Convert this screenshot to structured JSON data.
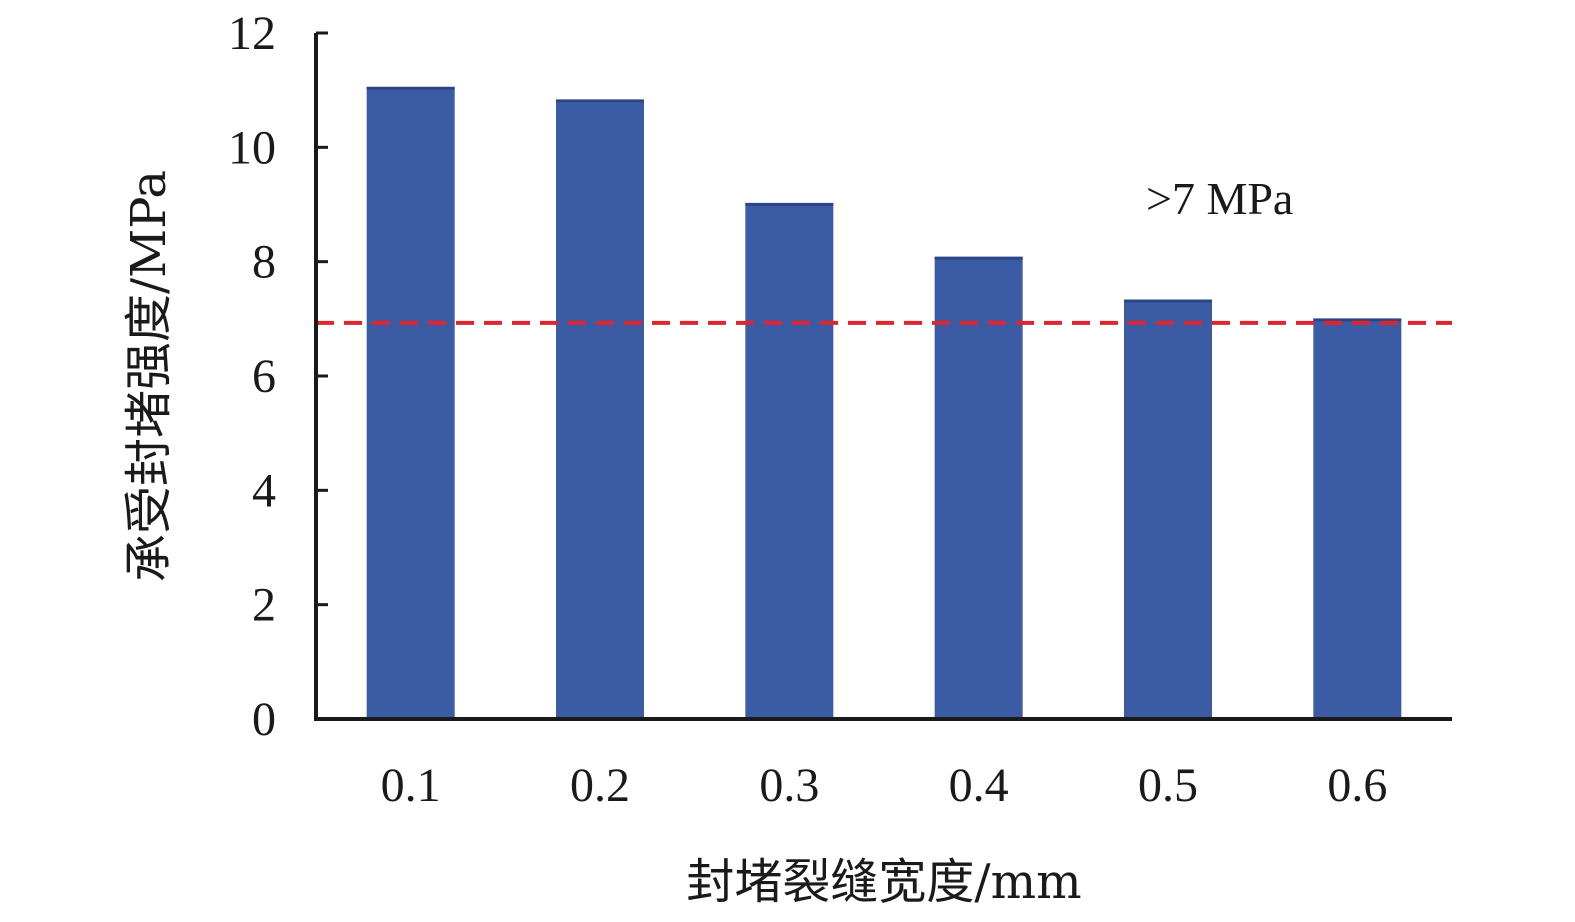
{
  "chart_data": {
    "type": "bar",
    "categories": [
      "0.1",
      "0.2",
      "0.3",
      "0.4",
      "0.5",
      "0.6"
    ],
    "values": [
      11.05,
      10.83,
      9.02,
      8.08,
      7.33,
      7.0
    ],
    "xlabel": "封堵裂缝宽度/mm",
    "ylabel": "承受封堵强度/MPa",
    "ylim": [
      0,
      12
    ],
    "yticks": [
      "0",
      "2",
      "4",
      "6",
      "8",
      "10",
      "12"
    ],
    "grid": false,
    "legend": "none",
    "reference_line": {
      "value": 6.93,
      "style": "dashed"
    },
    "annotation": ">7 MPa",
    "colors": {
      "bar": "#3c5ba5",
      "bar_top": "#2c4488",
      "reference_line": "#e0242e",
      "axis": "#1a1a1a"
    }
  }
}
